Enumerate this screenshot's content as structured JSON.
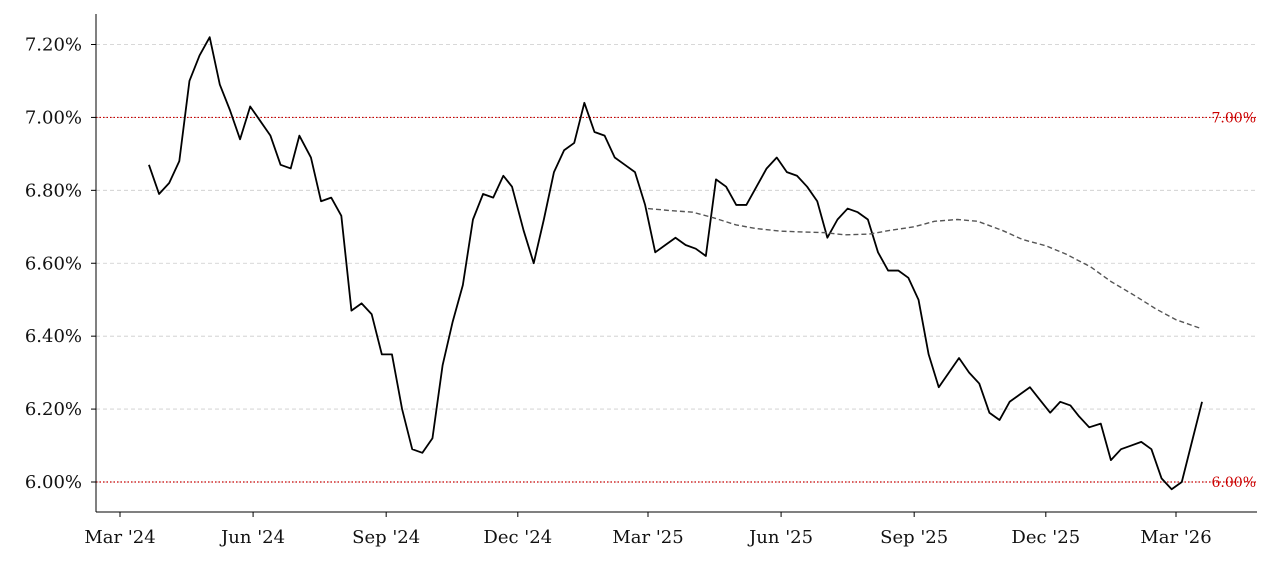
{
  "chart_data": {
    "type": "line",
    "title": "",
    "xlabel": "",
    "ylabel": "",
    "x_range": [
      "2024-02-20",
      "2026-04-20"
    ],
    "ylim": [
      5.92,
      7.28
    ],
    "grid": "horizontal dashed",
    "legend": "none",
    "x_ticks": [
      {
        "date": "2024-03-01",
        "label": "Mar '24"
      },
      {
        "date": "2024-06-01",
        "label": "Jun '24"
      },
      {
        "date": "2024-09-01",
        "label": "Sep '24"
      },
      {
        "date": "2024-12-01",
        "label": "Dec '24"
      },
      {
        "date": "2025-03-01",
        "label": "Mar '25"
      },
      {
        "date": "2025-06-01",
        "label": "Jun '25"
      },
      {
        "date": "2025-09-01",
        "label": "Sep '25"
      },
      {
        "date": "2025-12-01",
        "label": "Dec '25"
      },
      {
        "date": "2026-03-01",
        "label": "Mar '26"
      }
    ],
    "y_ticks": [
      {
        "value": 6.0,
        "label": "6.00%"
      },
      {
        "value": 6.2,
        "label": "6.20%"
      },
      {
        "value": 6.4,
        "label": "6.40%"
      },
      {
        "value": 6.6,
        "label": "6.60%"
      },
      {
        "value": 6.8,
        "label": "6.80%"
      },
      {
        "value": 7.0,
        "label": "7.00%"
      },
      {
        "value": 7.2,
        "label": "7.20%"
      }
    ],
    "reference_lines": [
      {
        "value": 7.0,
        "label": "7.00%",
        "color": "#cc0000"
      },
      {
        "value": 6.0,
        "label": "6.00%",
        "color": "#cc0000"
      }
    ],
    "series": [
      {
        "style": "solid",
        "color": "#000000",
        "points": [
          [
            "2024-03-21",
            6.87
          ],
          [
            "2024-03-28",
            6.79
          ],
          [
            "2024-04-04",
            6.82
          ],
          [
            "2024-04-11",
            6.88
          ],
          [
            "2024-04-18",
            7.1
          ],
          [
            "2024-04-25",
            7.17
          ],
          [
            "2024-05-02",
            7.22
          ],
          [
            "2024-05-09",
            7.09
          ],
          [
            "2024-05-16",
            7.02
          ],
          [
            "2024-05-23",
            6.94
          ],
          [
            "2024-05-30",
            7.03
          ],
          [
            "2024-06-06",
            6.99
          ],
          [
            "2024-06-13",
            6.95
          ],
          [
            "2024-06-20",
            6.87
          ],
          [
            "2024-06-27",
            6.86
          ],
          [
            "2024-07-03",
            6.95
          ],
          [
            "2024-07-11",
            6.89
          ],
          [
            "2024-07-18",
            6.77
          ],
          [
            "2024-07-25",
            6.78
          ],
          [
            "2024-08-01",
            6.73
          ],
          [
            "2024-08-08",
            6.47
          ],
          [
            "2024-08-15",
            6.49
          ],
          [
            "2024-08-22",
            6.46
          ],
          [
            "2024-08-29",
            6.35
          ],
          [
            "2024-09-05",
            6.35
          ],
          [
            "2024-09-12",
            6.2
          ],
          [
            "2024-09-19",
            6.09
          ],
          [
            "2024-09-26",
            6.08
          ],
          [
            "2024-10-03",
            6.12
          ],
          [
            "2024-10-10",
            6.32
          ],
          [
            "2024-10-17",
            6.44
          ],
          [
            "2024-10-24",
            6.54
          ],
          [
            "2024-10-31",
            6.72
          ],
          [
            "2024-11-07",
            6.79
          ],
          [
            "2024-11-14",
            6.78
          ],
          [
            "2024-11-21",
            6.84
          ],
          [
            "2024-11-27",
            6.81
          ],
          [
            "2024-12-05",
            6.69
          ],
          [
            "2024-12-12",
            6.6
          ],
          [
            "2024-12-19",
            6.72
          ],
          [
            "2024-12-26",
            6.85
          ],
          [
            "2025-01-02",
            6.91
          ],
          [
            "2025-01-09",
            6.93
          ],
          [
            "2025-01-16",
            7.04
          ],
          [
            "2025-01-23",
            6.96
          ],
          [
            "2025-01-30",
            6.95
          ],
          [
            "2025-02-06",
            6.89
          ],
          [
            "2025-02-13",
            6.87
          ],
          [
            "2025-02-20",
            6.85
          ],
          [
            "2025-02-27",
            6.76
          ],
          [
            "2025-03-06",
            6.63
          ],
          [
            "2025-03-13",
            6.65
          ],
          [
            "2025-03-20",
            6.67
          ],
          [
            "2025-03-27",
            6.65
          ],
          [
            "2025-04-03",
            6.64
          ],
          [
            "2025-04-10",
            6.62
          ],
          [
            "2025-04-17",
            6.83
          ],
          [
            "2025-04-24",
            6.81
          ],
          [
            "2025-05-01",
            6.76
          ],
          [
            "2025-05-08",
            6.76
          ],
          [
            "2025-05-15",
            6.81
          ],
          [
            "2025-05-22",
            6.86
          ],
          [
            "2025-05-29",
            6.89
          ],
          [
            "2025-06-05",
            6.85
          ],
          [
            "2025-06-12",
            6.84
          ],
          [
            "2025-06-19",
            6.81
          ],
          [
            "2025-06-26",
            6.77
          ],
          [
            "2025-07-03",
            6.67
          ],
          [
            "2025-07-10",
            6.72
          ],
          [
            "2025-07-17",
            6.75
          ],
          [
            "2025-07-24",
            6.74
          ],
          [
            "2025-07-31",
            6.72
          ],
          [
            "2025-08-07",
            6.63
          ],
          [
            "2025-08-14",
            6.58
          ],
          [
            "2025-08-21",
            6.58
          ],
          [
            "2025-08-28",
            6.56
          ],
          [
            "2025-09-04",
            6.5
          ],
          [
            "2025-09-11",
            6.35
          ],
          [
            "2025-09-18",
            6.26
          ],
          [
            "2025-09-25",
            6.3
          ],
          [
            "2025-10-02",
            6.34
          ],
          [
            "2025-10-09",
            6.3
          ],
          [
            "2025-10-16",
            6.27
          ],
          [
            "2025-10-23",
            6.19
          ],
          [
            "2025-10-30",
            6.17
          ],
          [
            "2025-11-06",
            6.22
          ],
          [
            "2025-11-13",
            6.24
          ],
          [
            "2025-11-20",
            6.26
          ],
          [
            "2025-11-26",
            6.23
          ],
          [
            "2025-12-04",
            6.19
          ],
          [
            "2025-12-11",
            6.22
          ],
          [
            "2025-12-18",
            6.21
          ],
          [
            "2025-12-24",
            6.18
          ],
          [
            "2025-12-31",
            6.15
          ],
          [
            "2026-01-08",
            6.16
          ],
          [
            "2026-01-15",
            6.06
          ],
          [
            "2026-01-22",
            6.09
          ],
          [
            "2026-01-29",
            6.1
          ],
          [
            "2026-02-05",
            6.11
          ],
          [
            "2026-02-12",
            6.09
          ],
          [
            "2026-02-19",
            6.01
          ],
          [
            "2026-02-26",
            5.98
          ],
          [
            "2026-03-05",
            6.0
          ],
          [
            "2026-03-12",
            6.11
          ],
          [
            "2026-03-19",
            6.22
          ]
        ]
      },
      {
        "style": "dashed",
        "color": "#555555",
        "points": [
          [
            "2025-03-01",
            6.75
          ],
          [
            "2025-03-15",
            6.745
          ],
          [
            "2025-04-01",
            6.74
          ],
          [
            "2025-04-15",
            6.725
          ],
          [
            "2025-05-01",
            6.705
          ],
          [
            "2025-05-15",
            6.695
          ],
          [
            "2025-06-01",
            6.688
          ],
          [
            "2025-06-15",
            6.686
          ],
          [
            "2025-07-01",
            6.684
          ],
          [
            "2025-07-15",
            6.678
          ],
          [
            "2025-08-01",
            6.68
          ],
          [
            "2025-08-15",
            6.69
          ],
          [
            "2025-09-01",
            6.7
          ],
          [
            "2025-09-15",
            6.715
          ],
          [
            "2025-10-01",
            6.72
          ],
          [
            "2025-10-15",
            6.715
          ],
          [
            "2025-11-01",
            6.69
          ],
          [
            "2025-11-15",
            6.665
          ],
          [
            "2025-12-01",
            6.648
          ],
          [
            "2025-12-15",
            6.625
          ],
          [
            "2026-01-01",
            6.59
          ],
          [
            "2026-01-15",
            6.55
          ],
          [
            "2026-02-01",
            6.51
          ],
          [
            "2026-02-15",
            6.475
          ],
          [
            "2026-03-01",
            6.445
          ],
          [
            "2026-03-19",
            6.42
          ]
        ]
      }
    ]
  }
}
